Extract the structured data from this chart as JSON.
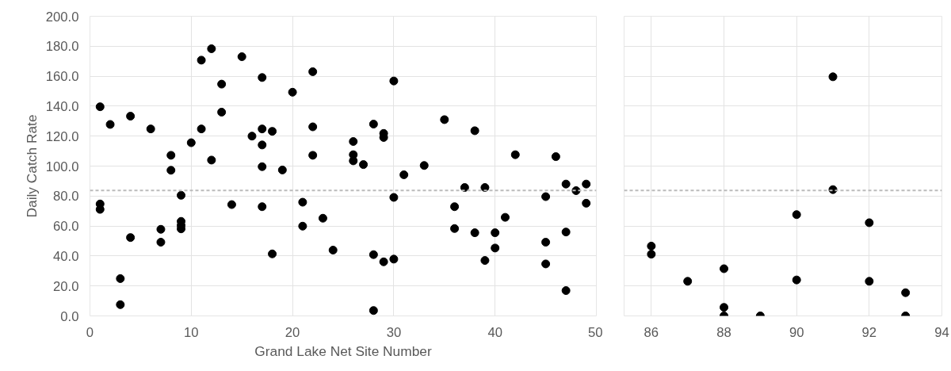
{
  "chart_data": [
    {
      "type": "scatter",
      "xlabel": "Grand Lake Net Site Number",
      "ylabel": "Daily Catch Rate",
      "marker": "circle",
      "grid": true,
      "xlim": [
        0,
        50
      ],
      "xticks": [
        0,
        10,
        20,
        30,
        40,
        50
      ],
      "ylim": [
        0,
        200
      ],
      "yticks": [
        {
          "value": 0,
          "label": "0.0"
        },
        {
          "value": 20,
          "label": "20.0"
        },
        {
          "value": 40,
          "label": "40.0"
        },
        {
          "value": 60,
          "label": "60.0"
        },
        {
          "value": 80,
          "label": "80.0"
        },
        {
          "value": 100,
          "label": "100.0"
        },
        {
          "value": 120,
          "label": "120.0"
        },
        {
          "value": 140,
          "label": "140.0"
        },
        {
          "value": 160,
          "label": "160.0"
        },
        {
          "value": 180,
          "label": "180.0"
        },
        {
          "value": 200,
          "label": "200.0"
        }
      ],
      "ref_lines": [
        {
          "axis": "y",
          "value": 83.7,
          "color": "#bbbbbb",
          "line_style": "dashed"
        }
      ],
      "series": [
        {
          "color": "#000000",
          "x": [
            1,
            2,
            4,
            6,
            8,
            8,
            9,
            1,
            1,
            4,
            7,
            7,
            9,
            9,
            9,
            3,
            3,
            10,
            11,
            11,
            12,
            12,
            13,
            13,
            14,
            15,
            16,
            17,
            17,
            17,
            17,
            17,
            18,
            18,
            19,
            20,
            21,
            21,
            22,
            22,
            22,
            23,
            24,
            26,
            26,
            26,
            27,
            28,
            28,
            28,
            29,
            29,
            29,
            30,
            30,
            30,
            31,
            33,
            35,
            36,
            36,
            37,
            38,
            38,
            39,
            39,
            40,
            40,
            41,
            42,
            45,
            45,
            45,
            46,
            47,
            47,
            47,
            48,
            49,
            49
          ],
          "values": [
            139.6,
            127.8,
            133.3,
            124.8,
            107.2,
            97.2,
            80.5,
            74.7,
            71.1,
            52.3,
            57.8,
            49.2,
            63.1,
            60.4,
            58.1,
            24.9,
            7.5,
            115.6,
            170.7,
            124.8,
            178.3,
            104,
            154.7,
            136,
            74.3,
            173,
            120,
            159.1,
            124.8,
            114.1,
            99.6,
            72.9,
            123.2,
            41.4,
            97.4,
            149.3,
            75.9,
            59.9,
            163,
            126.2,
            107.2,
            65.2,
            43.9,
            116.4,
            107.6,
            103.5,
            101,
            128,
            40.9,
            3.6,
            121.8,
            119.1,
            36.1,
            156.8,
            79.1,
            37.9,
            94.2,
            100.4,
            131,
            72.9,
            58.3,
            85.7,
            123.6,
            55.5,
            85.7,
            37,
            55.5,
            45.3,
            65.8,
            107.6,
            79.6,
            49.2,
            34.7,
            106.3,
            88,
            56,
            16.9,
            83.6,
            88,
            75.2
          ]
        }
      ]
    },
    {
      "type": "scatter",
      "marker": "circle",
      "grid": true,
      "tick_labels": "x",
      "xlim": [
        85.25,
        94
      ],
      "xticks": [
        86,
        88,
        90,
        92,
        94
      ],
      "ylim": [
        0,
        200
      ],
      "yticks": [
        {
          "value": 0,
          "label": null
        },
        {
          "value": 20,
          "label": null
        },
        {
          "value": 40,
          "label": null
        },
        {
          "value": 60,
          "label": null
        },
        {
          "value": 80,
          "label": null
        },
        {
          "value": 100,
          "label": null
        },
        {
          "value": 120,
          "label": null
        },
        {
          "value": 140,
          "label": null
        },
        {
          "value": 160,
          "label": null
        },
        {
          "value": 180,
          "label": null
        },
        {
          "value": 200,
          "label": null
        }
      ],
      "ref_lines": [
        {
          "axis": "y",
          "value": 83.7,
          "color": "#bbbbbb",
          "line_style": "dashed"
        }
      ],
      "series": [
        {
          "color": "#000000",
          "x": [
            86,
            86,
            87,
            88,
            88,
            88,
            89,
            90,
            90,
            91,
            91,
            92,
            92,
            93,
            93
          ],
          "values": [
            46.6,
            41.2,
            23.1,
            31.5,
            5.7,
            0,
            0,
            67.6,
            24,
            159.6,
            84.3,
            62.2,
            23.1,
            15.5,
            0
          ]
        }
      ]
    }
  ]
}
